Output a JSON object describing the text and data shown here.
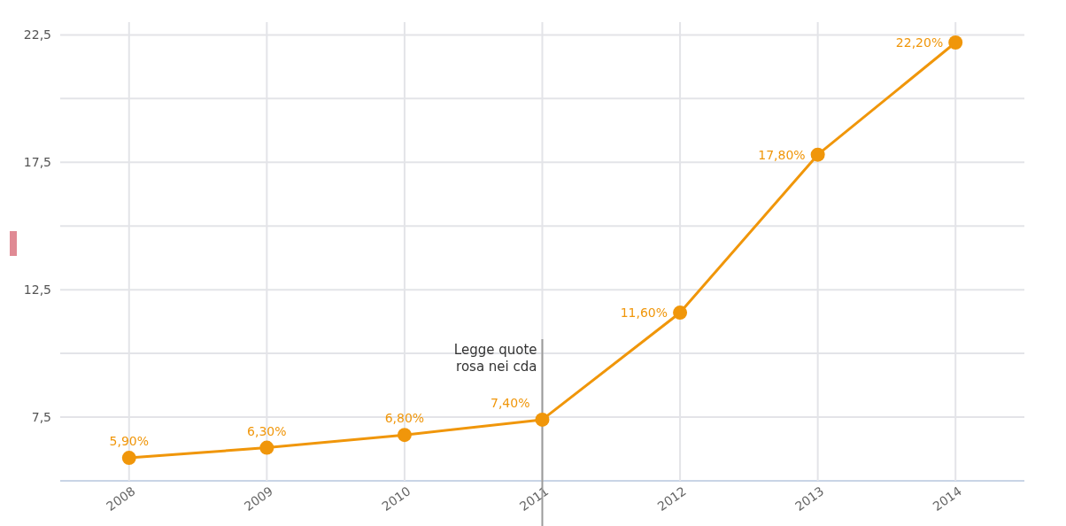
{
  "chart_data": {
    "type": "line",
    "categories": [
      "2008",
      "2009",
      "2010",
      "2011",
      "2012",
      "2013",
      "2014"
    ],
    "series": [
      {
        "color": "#f0960a",
        "values": [
          5.9,
          6.3,
          6.8,
          7.4,
          11.6,
          17.8,
          22.2
        ],
        "value_labels": [
          "5,90%",
          "6,30%",
          "6,80%",
          "7,40%",
          "11,60%",
          "17,80%",
          "22,20%"
        ]
      }
    ],
    "ylim": [
      5,
      23
    ],
    "yticks": [
      {
        "value": 5,
        "label": null
      },
      {
        "value": 7.5,
        "label": "7,5"
      },
      {
        "value": 10,
        "label": null
      },
      {
        "value": 12.5,
        "label": "12,5"
      },
      {
        "value": 15,
        "label": null
      },
      {
        "value": 17.5,
        "label": "17,5"
      },
      {
        "value": 20,
        "label": null
      },
      {
        "value": 22.5,
        "label": "22,5"
      }
    ],
    "grid": true,
    "marker": "circle",
    "line_style": "solid",
    "ref_lines": [
      {
        "axis": "x",
        "value": "2011",
        "label": "Legge quote rosa nei cda",
        "color": "#9a9a9a"
      }
    ]
  }
}
